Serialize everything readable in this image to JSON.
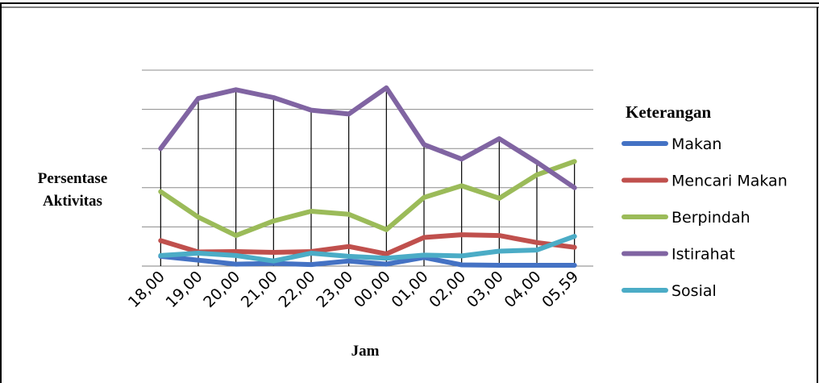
{
  "chart_data": {
    "type": "line",
    "title": "",
    "xlabel": "Jam",
    "ylabel": [
      "Persentase",
      "Aktivitas"
    ],
    "categories": [
      "18,00",
      "19,00",
      "20,00",
      "21,00",
      "22,00",
      "23,00",
      "00,00",
      "01,00",
      "02,00",
      "03,00",
      "04,00",
      "05,59"
    ],
    "ylim": [
      0,
      50
    ],
    "grid": true,
    "legend_title": "Keterangan",
    "legend_position": "right",
    "series": [
      {
        "name": "Makan",
        "color": "#4472c4",
        "values": [
          2.5,
          1.5,
          0.5,
          0.7,
          0.4,
          1.3,
          0.5,
          2.2,
          0.3,
          0.2,
          0.2,
          0.2
        ]
      },
      {
        "name": "Mencari Makan",
        "color": "#c0504d",
        "values": [
          6.5,
          3.6,
          3.7,
          3.5,
          3.7,
          5.0,
          3.1,
          7.3,
          8.0,
          7.8,
          6.0,
          4.8
        ]
      },
      {
        "name": "Berpindah",
        "color": "#9bbb59",
        "values": [
          19.0,
          12.5,
          7.8,
          11.5,
          14.0,
          13.2,
          9.3,
          17.5,
          20.5,
          17.3,
          23.3,
          26.7
        ]
      },
      {
        "name": "Istirahat",
        "color": "#8064a2",
        "values": [
          30.0,
          42.8,
          45.0,
          43.0,
          39.8,
          38.8,
          45.5,
          31.0,
          27.3,
          32.5,
          26.5,
          20.0
        ]
      },
      {
        "name": "Sosial",
        "color": "#4bacc6",
        "values": [
          2.7,
          3.3,
          2.7,
          1.3,
          3.3,
          2.5,
          2.0,
          2.8,
          2.6,
          3.8,
          4.1,
          7.6
        ]
      }
    ]
  }
}
